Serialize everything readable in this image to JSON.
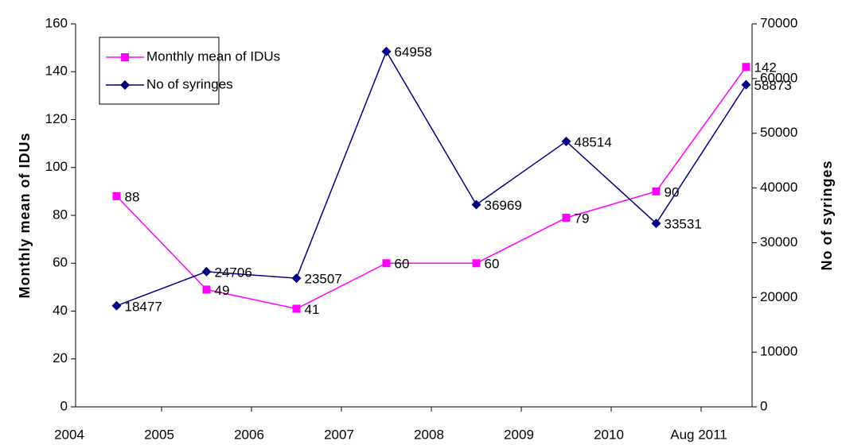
{
  "chart_data": {
    "type": "line",
    "categories": [
      "2004",
      "2005",
      "2006",
      "2007",
      "2008",
      "2009",
      "2010",
      "Aug 2011"
    ],
    "y_label": "Monthly mean of IDUs",
    "y2_label": "No of syringes",
    "ylim": [
      0,
      160
    ],
    "yticks": [
      0,
      20,
      40,
      60,
      80,
      100,
      120,
      140,
      160
    ],
    "y2lim": [
      0,
      70000
    ],
    "y2ticks": [
      0,
      10000,
      20000,
      30000,
      40000,
      50000,
      60000,
      70000
    ],
    "legend": "upper left",
    "series": [
      {
        "name": "Monthly mean of IDUs",
        "color": "#ff00ff",
        "marker": "square",
        "values": [
          88,
          49,
          41,
          60,
          60,
          79,
          90,
          142
        ]
      },
      {
        "name": "No of syringes",
        "color": "#000080",
        "marker": "diamond",
        "axis": "y2",
        "values": [
          18477,
          24706,
          23507,
          64958,
          36969,
          48514,
          33531,
          58873
        ]
      }
    ]
  }
}
